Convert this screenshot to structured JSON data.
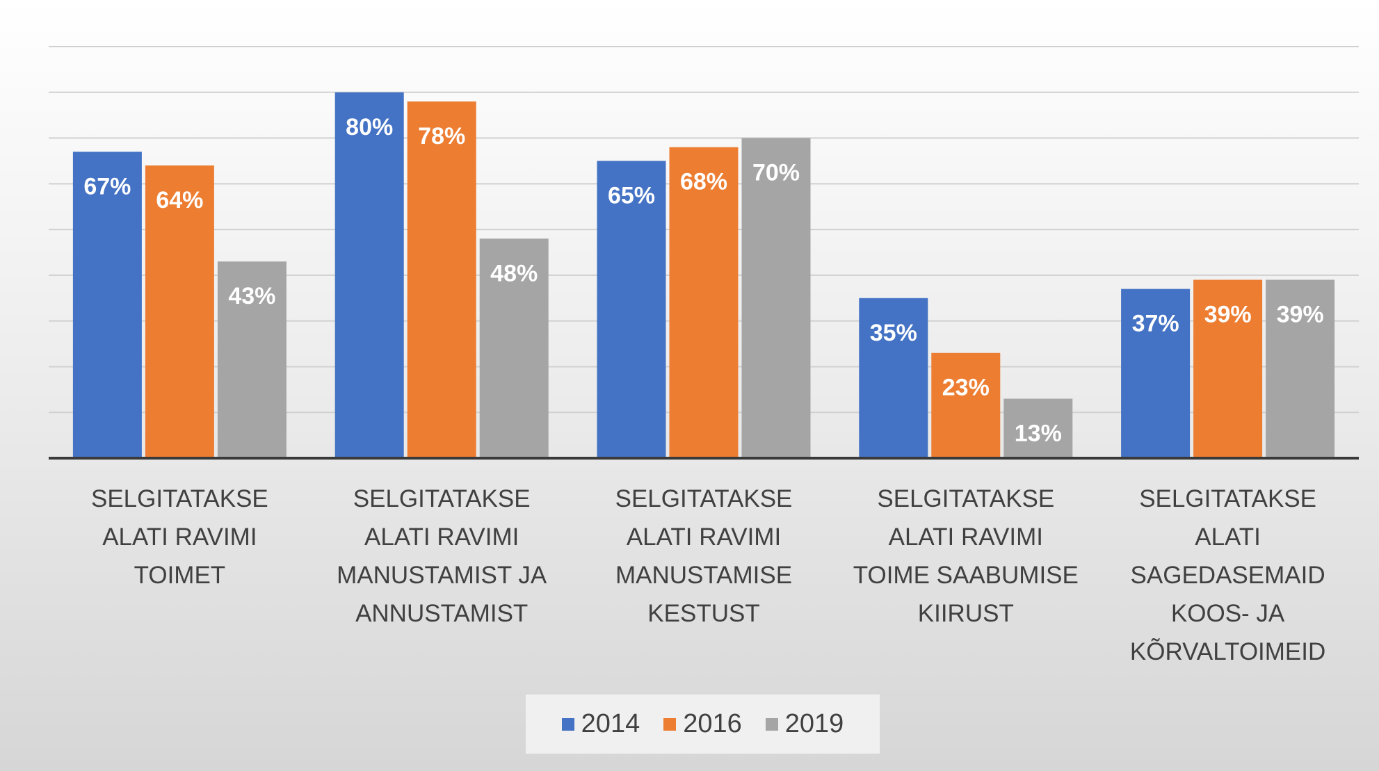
{
  "chart_data": {
    "type": "bar",
    "categories": [
      "SELGITATAKSE\nALATI RAVIMI\nTOIMET",
      "SELGITATAKSE\nALATI RAVIMI\nMANUSTAMIST JA\nANNUSTAMIST",
      "SELGITATAKSE\nALATI RAVIMI\nMANUSTAMISE\nKESTUST",
      "SELGITATAKSE\nALATI RAVIMI\nTOIME SAABUMISE\nKIIRUST",
      "SELGITATAKSE\nALATI\nSAGEDASEMAID\nKOOS- JA\nKÕRVALTOIMEID"
    ],
    "series": [
      {
        "name": "2014",
        "color": "#4472c4",
        "values": [
          67,
          80,
          65,
          35,
          37
        ],
        "value_labels": [
          "67%",
          "80%",
          "65%",
          "35%",
          "37%"
        ]
      },
      {
        "name": "2016",
        "color": "#ed7d31",
        "values": [
          64,
          78,
          68,
          23,
          39
        ],
        "value_labels": [
          "64%",
          "78%",
          "68%",
          "23%",
          "39%"
        ]
      },
      {
        "name": "2019",
        "color": "#a5a5a5",
        "values": [
          43,
          48,
          70,
          13,
          39
        ],
        "value_labels": [
          "43%",
          "48%",
          "70%",
          "13%",
          "39%"
        ]
      }
    ],
    "ylim": [
      0,
      90
    ],
    "yticks": [
      0,
      10,
      20,
      30,
      40,
      50,
      60,
      70,
      80,
      90
    ],
    "grid": true,
    "legend": "bottom"
  }
}
